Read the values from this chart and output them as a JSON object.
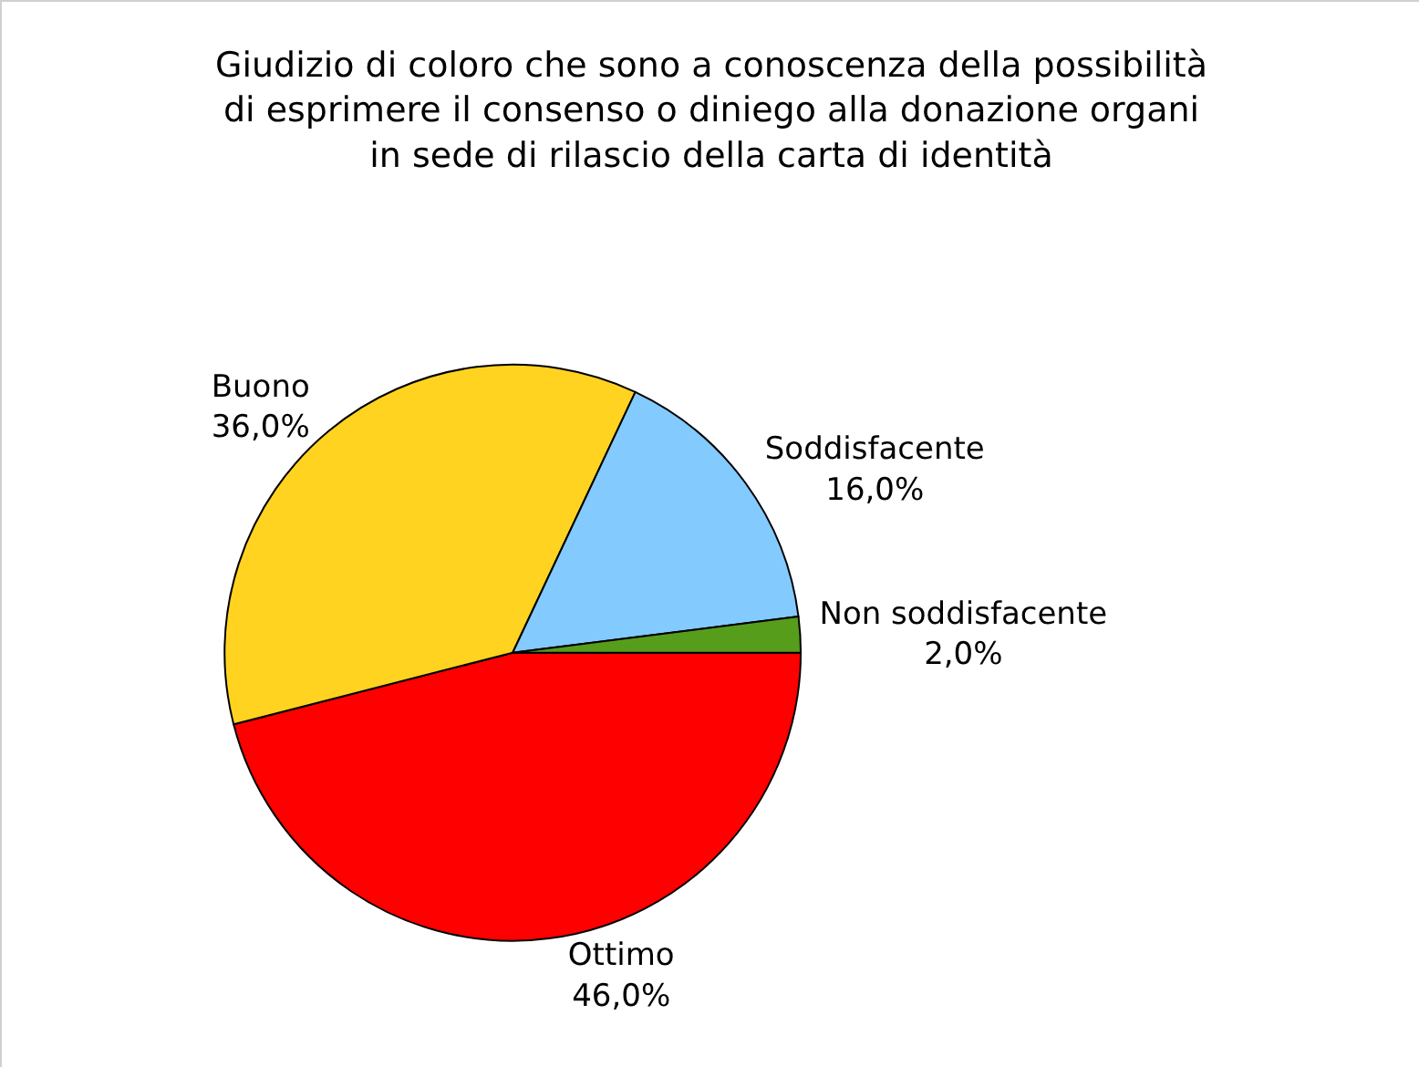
{
  "chart_data": {
    "type": "pie",
    "title": "Giudizio di coloro che sono a conoscenza della possibilità\ndi esprimere il consenso o diniego alla donazione organi\nin sede di rilascio della carta di identità",
    "categories": [
      "Ottimo",
      "Buono",
      "Soddisfacente",
      "Non soddisfacente"
    ],
    "values": [
      46,
      36,
      16,
      2
    ],
    "value_labels": [
      "46,0%",
      "36,0%",
      "16,0%",
      "2,0%"
    ],
    "colors": [
      "#ff0000",
      "#ffd320",
      "#83caff",
      "#579d1c"
    ],
    "legend": false
  }
}
